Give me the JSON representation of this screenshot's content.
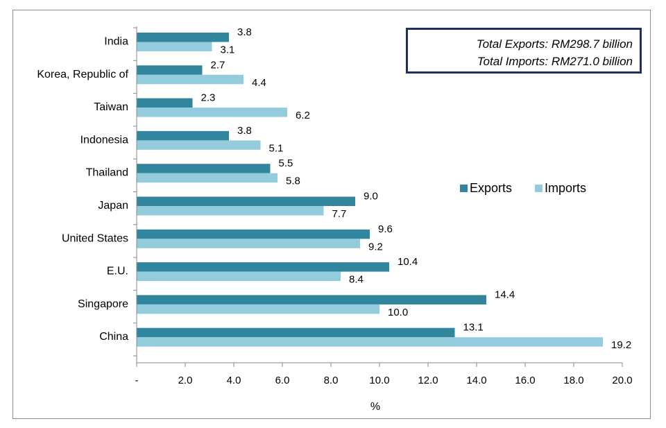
{
  "chart_data": {
    "type": "bar",
    "orientation": "horizontal",
    "categories": [
      "India",
      "Korea, Republic of",
      "Taiwan",
      "Indonesia",
      "Thailand",
      "Japan",
      "United States",
      "E.U.",
      "Singapore",
      "China"
    ],
    "series": [
      {
        "name": "Exports",
        "color": "#31859c",
        "values": [
          3.8,
          2.7,
          2.3,
          3.8,
          5.5,
          9.0,
          9.6,
          10.4,
          14.4,
          13.1
        ],
        "labels": [
          "3.8",
          "2.7",
          "2.3",
          "3.8",
          "5.5",
          "9.0",
          "9.6",
          "10.4",
          "14.4",
          "13.1"
        ]
      },
      {
        "name": "Imports",
        "color": "#93cddd",
        "values": [
          3.1,
          4.4,
          6.2,
          5.1,
          5.8,
          7.7,
          9.2,
          8.4,
          10.0,
          19.2
        ],
        "labels": [
          "3.1",
          "4.4",
          "6.2",
          "5.1",
          "5.8",
          "7.7",
          "9.2",
          "8.4",
          "10.0",
          "19.2"
        ]
      }
    ],
    "xlim": [
      0,
      20
    ],
    "x_ticks": [
      0,
      2,
      4,
      6,
      8,
      10,
      12,
      14,
      16,
      18,
      20
    ],
    "x_tick_labels": [
      "-",
      "2.0",
      "4.0",
      "6.0",
      "8.0",
      "10.0",
      "12.0",
      "14.0",
      "16.0",
      "18.0",
      "20.0"
    ],
    "xlabel": "%",
    "ylabel": "",
    "legend_position": "right",
    "grid": false
  },
  "annotation": {
    "total_exports": "Total Exports: RM298.7 billion",
    "total_imports": "Total Imports: RM271.0 billion"
  }
}
